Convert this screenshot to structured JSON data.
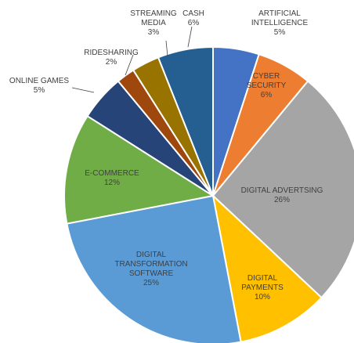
{
  "chart_data": {
    "type": "pie",
    "categories": [
      "ARTIFICIAL\nINTELLIGENCE",
      "CYBER\nSECURITY",
      "DIGITAL ADVERTSING",
      "DIGITAL\nPAYMENTS",
      "DIGITAL\nTRANSFORMATION\nSOFTWARE",
      "E-COMMERCE",
      "ONLINE GAMES",
      "RIDESHARING",
      "STREAMING\nMEDIA",
      "CASH"
    ],
    "values": [
      5,
      6,
      26,
      10,
      25,
      12,
      5,
      2,
      3,
      6
    ],
    "value_labels": [
      "5%",
      "6%",
      "26%",
      "10%",
      "25%",
      "12%",
      "5%",
      "2%",
      "3%",
      "6%"
    ],
    "colors": [
      "#4472c4",
      "#ed7d31",
      "#a5a5a5",
      "#ffc000",
      "#5b9bd5",
      "#70ad47",
      "#264478",
      "#9e480e",
      "#997300",
      "#255e91"
    ]
  }
}
